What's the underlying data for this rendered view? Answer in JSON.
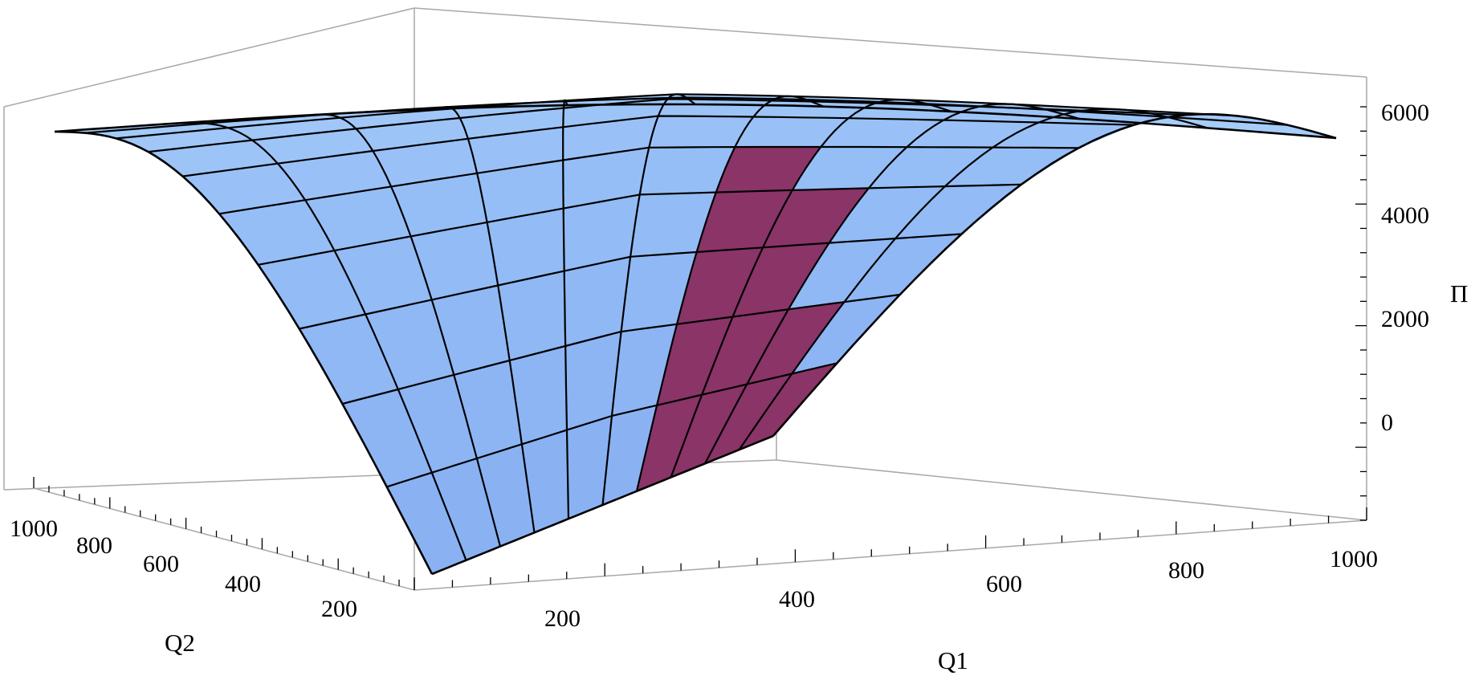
{
  "chart_data": {
    "type": "surface3d",
    "title": "",
    "xlabel": "Q1",
    "ylabel": "Q2",
    "zlabel": "Π",
    "xlim": [
      0,
      1000
    ],
    "ylim": [
      0,
      1000
    ],
    "zlim": [
      -1800,
      6500
    ],
    "x_ticks": [
      "200",
      "400",
      "600",
      "800",
      "1000"
    ],
    "y_ticks": [
      "200",
      "400",
      "600",
      "800",
      "1000"
    ],
    "z_ticks": [
      "0",
      "2000",
      "4000",
      "6000"
    ],
    "mesh_lines": 10,
    "surface": {
      "description_free": true,
      "corner_values": [
        {
          "q1": 0,
          "q2": 0,
          "pi": -1500
        },
        {
          "q1": 1000,
          "q2": 0,
          "pi": 0
        },
        {
          "q1": 0,
          "q2": 1000,
          "pi": 5600
        },
        {
          "q1": 1000,
          "q2": 1000,
          "pi": 5600
        }
      ],
      "max_value": 5900
    },
    "colors": {
      "top_surface": "#8ebcf6",
      "top_surface_light": "#a9cdf8",
      "under_surface": "#8a3468",
      "under_surface_dark": "#5a2b5c",
      "mesh": "#000000",
      "box": "#a8a8a8"
    }
  }
}
